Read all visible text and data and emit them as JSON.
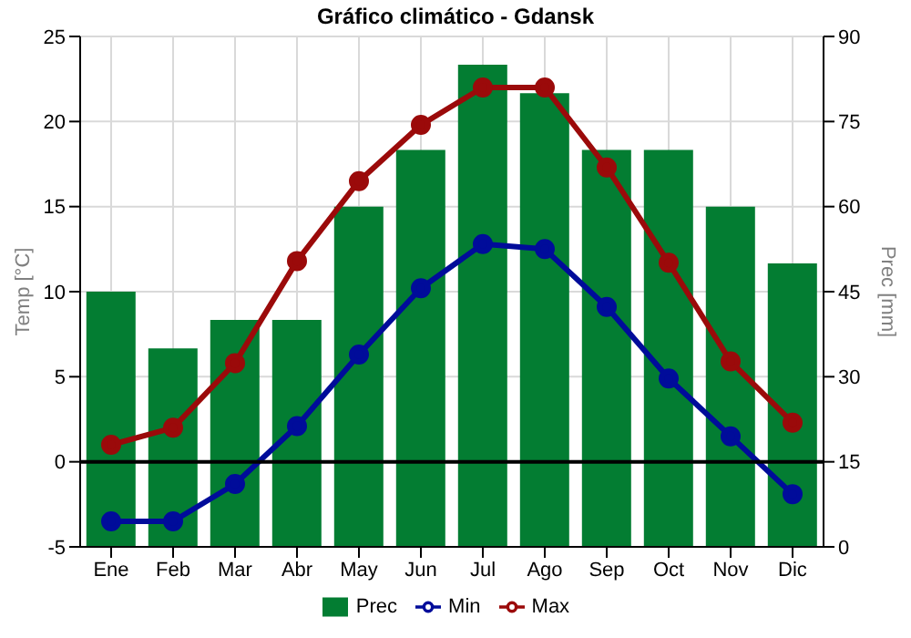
{
  "chart_data": {
    "type": "line",
    "title": "Gráfico climático - Gdansk",
    "ylabel": "Temp [°C]",
    "y2label": "Prec [mm]",
    "categories": [
      "Ene",
      "Feb",
      "Mar",
      "Abr",
      "May",
      "Jun",
      "Jul",
      "Ago",
      "Sep",
      "Oct",
      "Nov",
      "Dic"
    ],
    "series": [
      {
        "name": "Prec",
        "type": "bar",
        "axis": "y2",
        "color": "#037d32",
        "values": [
          45,
          35,
          40,
          40,
          60,
          70,
          85,
          80,
          70,
          70,
          60,
          50
        ]
      },
      {
        "name": "Min",
        "color": "#000c9a",
        "values": [
          -3.5,
          -3.5,
          -1.3,
          2.1,
          6.3,
          10.2,
          12.8,
          12.5,
          9.1,
          4.9,
          1.5,
          -1.9
        ]
      },
      {
        "name": "Max",
        "color": "#9b0a0a",
        "values": [
          1.0,
          2.0,
          5.8,
          11.8,
          16.5,
          19.8,
          22.0,
          22.0,
          17.3,
          11.7,
          5.9,
          2.3
        ]
      }
    ],
    "ylim": [
      -5,
      25
    ],
    "yticks": [
      -5,
      0,
      5,
      10,
      15,
      20,
      25
    ],
    "y2lim": [
      0,
      90
    ],
    "y2ticks": [
      0,
      15,
      30,
      45,
      60,
      75,
      90
    ],
    "ref_lines": [
      {
        "axis": "y",
        "value": 0,
        "color": "#000000"
      }
    ],
    "grid": true,
    "legend": "bottom",
    "marker": "circle",
    "line_style": "solid"
  }
}
